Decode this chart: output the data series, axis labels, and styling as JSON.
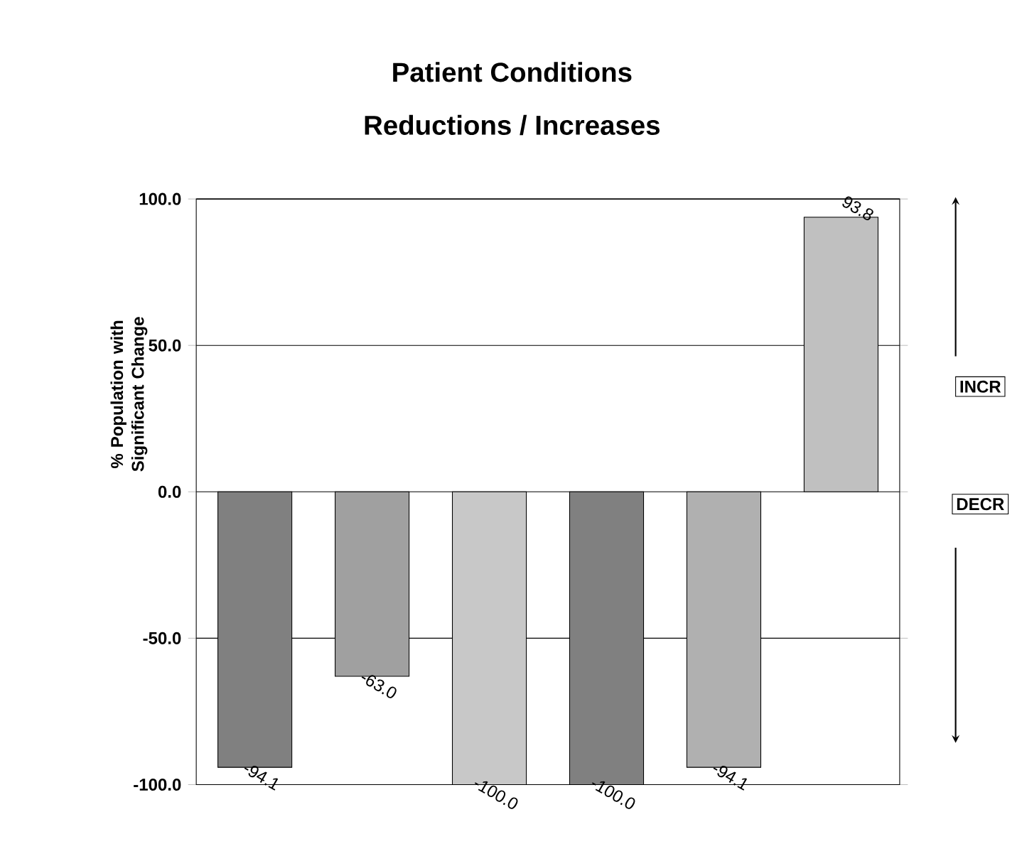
{
  "chart_data": {
    "type": "bar",
    "title": "Patient Conditions",
    "subtitle": "Reductions / Increases",
    "ylabel": "% Population with Significant Change",
    "categories": [
      null,
      null,
      null,
      null,
      null,
      null
    ],
    "values": [
      -94.1,
      -63.0,
      -100.0,
      -100.0,
      -94.1,
      93.8
    ],
    "value_labels": [
      "-94.1",
      "-63.0",
      "-100.0",
      "-100.0",
      "-94.1",
      "93.8"
    ],
    "colors": [
      "#808080",
      "#a0a0a0",
      "#c8c8c8",
      "#808080",
      "#b0b0b0",
      "#c0c0c0"
    ],
    "ylim": [
      -100,
      100
    ],
    "yticks": [
      {
        "value": -100,
        "label": "-100.0"
      },
      {
        "value": -50,
        "label": "-50.0"
      },
      {
        "value": 0,
        "label": "0.0"
      },
      {
        "value": 50,
        "label": "50.0"
      },
      {
        "value": 100,
        "label": "100.0"
      }
    ],
    "grid": "y",
    "annotations": [
      "INCR",
      "DECR"
    ]
  }
}
